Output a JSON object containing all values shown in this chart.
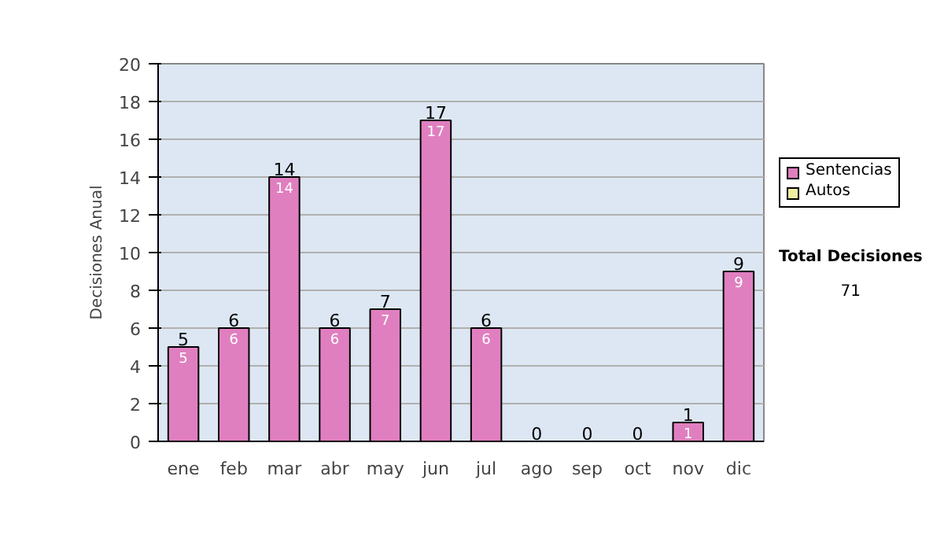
{
  "chart_data": {
    "type": "bar",
    "stacked": true,
    "ylabel": "Decisiones Anual",
    "categories": [
      "ene",
      "feb",
      "mar",
      "abr",
      "may",
      "jun",
      "jul",
      "ago",
      "sep",
      "oct",
      "nov",
      "dic"
    ],
    "series": [
      {
        "name": "Sentencias",
        "color": "#e07fc0",
        "values": [
          5,
          6,
          14,
          6,
          7,
          17,
          6,
          0,
          0,
          0,
          1,
          9
        ],
        "value_labels": [
          "5",
          "6",
          "14",
          "6",
          "7",
          "17",
          "6",
          null,
          null,
          null,
          "1",
          "9"
        ]
      },
      {
        "name": "Autos",
        "color": "#f0f0a0",
        "values": [
          0,
          0,
          0,
          0,
          0,
          0,
          0,
          0,
          0,
          0,
          0,
          0
        ]
      }
    ],
    "totals": [
      "5",
      "6",
      "14",
      "6",
      "7",
      "17",
      "6",
      "0",
      "0",
      "0",
      "1",
      "9"
    ],
    "ylim": [
      0,
      20
    ],
    "yticks": [
      0,
      2,
      4,
      6,
      8,
      10,
      12,
      14,
      16,
      18,
      20
    ],
    "grid": "y",
    "legend": "right",
    "annotations": [
      "Total Decisiones",
      "71"
    ]
  }
}
